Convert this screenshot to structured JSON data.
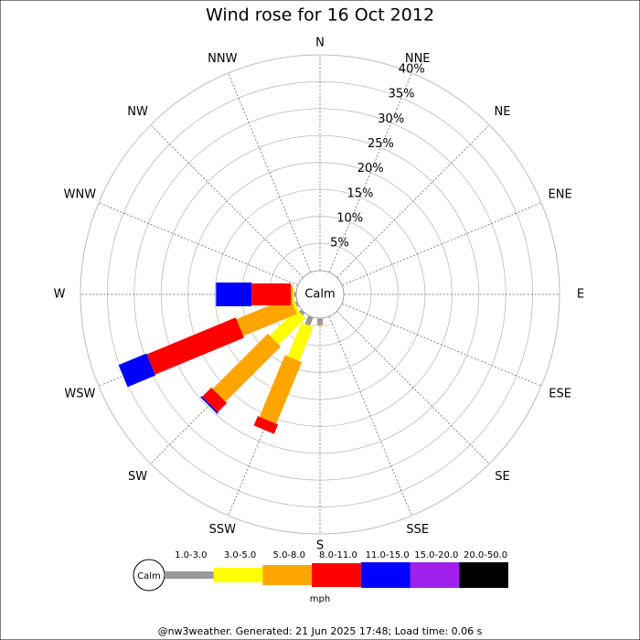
{
  "chart_data": {
    "type": "windrose",
    "title": "Wind rose for 16 Oct 2012",
    "directions": [
      "N",
      "NNE",
      "NE",
      "ENE",
      "E",
      "ESE",
      "SE",
      "SSE",
      "S",
      "SSW",
      "SW",
      "WSW",
      "W",
      "WNW",
      "NW",
      "NNW"
    ],
    "calm_label": "Calm",
    "rlim": [
      0,
      40
    ],
    "rticks": [
      {
        "value": 5,
        "label": "5%"
      },
      {
        "value": 10,
        "label": "10%"
      },
      {
        "value": 15,
        "label": "15%"
      },
      {
        "value": 20,
        "label": "20%"
      },
      {
        "value": 25,
        "label": "25%"
      },
      {
        "value": 30,
        "label": "30%"
      },
      {
        "value": 35,
        "label": "35%"
      },
      {
        "value": 40,
        "label": "40%"
      }
    ],
    "series": [
      {
        "name": "1.0-3.0",
        "color": "#999999",
        "values": [
          0,
          0,
          0,
          0,
          0,
          0,
          0,
          0,
          1.2,
          1.6,
          0.5,
          0.3,
          0.3,
          0,
          0,
          0
        ]
      },
      {
        "name": "3.0-5.0",
        "color": "#ffff00",
        "values": [
          0,
          0,
          0,
          0,
          0,
          0,
          0,
          0,
          0,
          6.8,
          7.0,
          0.5,
          0.3,
          0,
          0,
          0
        ]
      },
      {
        "name": "5.0-8.0",
        "color": "#ffa500",
        "values": [
          0,
          0,
          0,
          0,
          0,
          0,
          0,
          0,
          0.1,
          12.4,
          14.5,
          10.8,
          0.3,
          0,
          0,
          0
        ]
      },
      {
        "name": "8.0-11.0",
        "color": "#ff0000",
        "values": [
          0,
          0,
          0,
          0,
          0,
          0,
          0,
          0,
          0,
          1.9,
          2.4,
          17.9,
          7.3,
          0,
          0,
          0
        ]
      },
      {
        "name": "11.0-15.0",
        "color": "#0000ff",
        "values": [
          0,
          0,
          0,
          0,
          0,
          0,
          0,
          0,
          0,
          0,
          0.3,
          5.6,
          6.6,
          0,
          0,
          0
        ]
      },
      {
        "name": "15.0-20.0",
        "color": "#a020f0",
        "values": [
          0,
          0,
          0,
          0,
          0,
          0,
          0,
          0,
          0,
          0,
          0,
          0,
          0,
          0,
          0,
          0
        ]
      },
      {
        "name": "20.0-50.0",
        "color": "#000000",
        "values": [
          0,
          0,
          0,
          0,
          0,
          0,
          0,
          0,
          0,
          0,
          0,
          0,
          0,
          0,
          0,
          0
        ]
      }
    ],
    "legend_unit": "mph",
    "footer": "@nw3weather. Generated: 21 Jun 2025 17:48; Load time: 0.06 s"
  }
}
